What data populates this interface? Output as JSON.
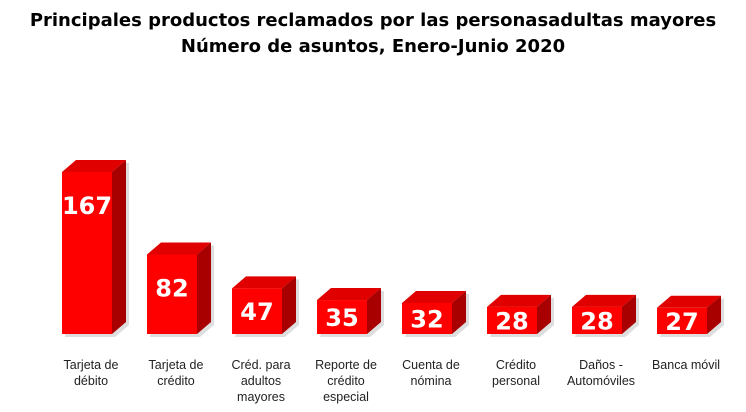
{
  "chart_data": {
    "type": "bar",
    "title": "Principales productos reclamados por las personasadultas mayores",
    "subtitle": "Número de asuntos, Enero-Junio 2020",
    "categories": [
      [
        "Tarjeta de",
        "débito"
      ],
      [
        "Tarjeta de",
        "crédito"
      ],
      [
        "Créd. para",
        "adultos",
        "mayores"
      ],
      [
        "Reporte de",
        "crédito",
        "especial"
      ],
      [
        "Cuenta de",
        "nómina"
      ],
      [
        "Crédito",
        "personal"
      ],
      [
        "Daños -",
        "Automóviles"
      ],
      [
        "Banca móvil"
      ]
    ],
    "values": [
      167,
      82,
      47,
      35,
      32,
      28,
      28,
      27
    ],
    "ylim": [
      0,
      167
    ],
    "grid": false,
    "legend": "none",
    "colors": {
      "front": "#ff0000",
      "top": "#e00000",
      "side": "#a80000",
      "shadow": "#c8c8c8"
    }
  }
}
